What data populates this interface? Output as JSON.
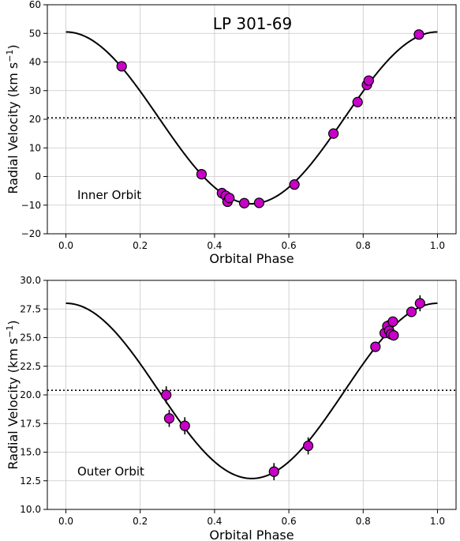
{
  "chart_data": [
    {
      "type": "scatter",
      "title": "LP 301-69",
      "annotation": "Inner Orbit",
      "xlabel": "Orbital Phase",
      "ylabel": "Radial Velocity (km s",
      "ylabel_sup": "−1",
      "ylabel_end": ")",
      "xlim": [
        -0.05,
        1.05
      ],
      "ylim": [
        -20,
        60
      ],
      "xticks": [
        0.0,
        0.2,
        0.4,
        0.6,
        0.8,
        1.0
      ],
      "xtick_labels": [
        "0.0",
        "0.2",
        "0.4",
        "0.6",
        "0.8",
        "1.0"
      ],
      "yticks": [
        -20,
        -10,
        0,
        10,
        20,
        30,
        40,
        50,
        60
      ],
      "ytick_labels": [
        "−20",
        "−10",
        "0",
        "10",
        "20",
        "30",
        "40",
        "50",
        "60"
      ],
      "grid": true,
      "systemic_velocity": 20.5,
      "model_curve": {
        "gamma": 20.5,
        "amplitude": 30.0
      },
      "marker_color": "#c800c8",
      "points": {
        "x": [
          0.15,
          0.365,
          0.42,
          0.43,
          0.435,
          0.44,
          0.48,
          0.52,
          0.615,
          0.72,
          0.785,
          0.81,
          0.815,
          0.95
        ],
        "y": [
          38.5,
          0.8,
          -5.8,
          -6.7,
          -8.8,
          -7.5,
          -9.3,
          -9.2,
          -2.8,
          15.0,
          26.0,
          32.0,
          33.5,
          49.6
        ],
        "yerr": [
          0,
          0,
          0,
          0,
          0,
          0,
          0,
          0,
          0,
          0,
          0,
          0,
          0,
          0
        ]
      }
    },
    {
      "type": "scatter",
      "title": "",
      "annotation": "Outer Orbit",
      "xlabel": "Orbital Phase",
      "ylabel": "Radial Velocity (km s",
      "ylabel_sup": "−1",
      "ylabel_end": ")",
      "xlim": [
        -0.05,
        1.05
      ],
      "ylim": [
        10.0,
        30.0
      ],
      "xticks": [
        0.0,
        0.2,
        0.4,
        0.6,
        0.8,
        1.0
      ],
      "xtick_labels": [
        "0.0",
        "0.2",
        "0.4",
        "0.6",
        "0.8",
        "1.0"
      ],
      "yticks": [
        10.0,
        12.5,
        15.0,
        17.5,
        20.0,
        22.5,
        25.0,
        27.5,
        30.0
      ],
      "ytick_labels": [
        "10.0",
        "12.5",
        "15.0",
        "17.5",
        "20.0",
        "22.5",
        "25.0",
        "27.5",
        "30.0"
      ],
      "grid": true,
      "systemic_velocity": 20.4,
      "model_curve": {
        "gamma": 20.35,
        "amplitude": 7.65
      },
      "marker_color": "#c800c8",
      "points": {
        "x": [
          0.27,
          0.278,
          0.32,
          0.56,
          0.652,
          0.833,
          0.858,
          0.865,
          0.87,
          0.875,
          0.88,
          0.882,
          0.93,
          0.953
        ],
        "y": [
          20.0,
          17.95,
          17.3,
          13.3,
          15.55,
          24.2,
          25.4,
          26.0,
          25.6,
          25.3,
          26.4,
          25.2,
          27.25,
          28.0
        ],
        "yerr": [
          0.75,
          0.75,
          0.75,
          0.75,
          0.75,
          0.4,
          0.4,
          0.5,
          0.4,
          0.4,
          0.4,
          0.3,
          0.4,
          0.7
        ]
      }
    }
  ]
}
